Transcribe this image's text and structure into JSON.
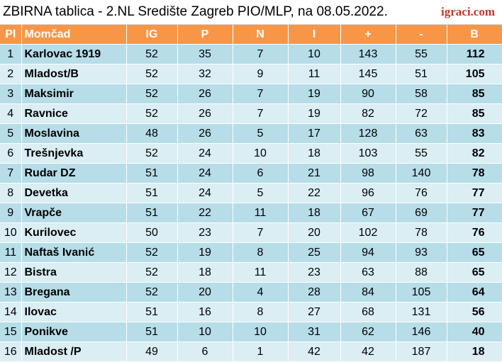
{
  "header": {
    "title": "ZBIRNA tablica - 2.NL Središte Zagreb PIO/MLP, na 08.05.2022.",
    "brand": "igraci.com"
  },
  "columns": [
    "Pl",
    "Momčad",
    "IG",
    "P",
    "N",
    "I",
    "+",
    "-",
    "B"
  ],
  "rows": [
    [
      "1",
      "Karlovac 1919",
      "52",
      "35",
      "7",
      "10",
      "143",
      "55",
      "112"
    ],
    [
      "2",
      "Mladost/B",
      "52",
      "32",
      "9",
      "11",
      "145",
      "51",
      "105"
    ],
    [
      "3",
      "Maksimir",
      "52",
      "26",
      "7",
      "19",
      "90",
      "58",
      "85"
    ],
    [
      "4",
      "Ravnice",
      "52",
      "26",
      "7",
      "19",
      "82",
      "72",
      "85"
    ],
    [
      "5",
      "Moslavina",
      "48",
      "26",
      "5",
      "17",
      "128",
      "63",
      "83"
    ],
    [
      "6",
      "Trešnjevka",
      "52",
      "24",
      "10",
      "18",
      "103",
      "55",
      "82"
    ],
    [
      "7",
      "Rudar DZ",
      "51",
      "24",
      "6",
      "21",
      "98",
      "140",
      "78"
    ],
    [
      "8",
      "Devetka",
      "51",
      "24",
      "5",
      "22",
      "96",
      "76",
      "77"
    ],
    [
      "9",
      "Vrapče",
      "51",
      "22",
      "11",
      "18",
      "67",
      "69",
      "77"
    ],
    [
      "10",
      "Kurilovec",
      "50",
      "23",
      "7",
      "20",
      "102",
      "78",
      "76"
    ],
    [
      "11",
      "Naftaš Ivanić",
      "52",
      "19",
      "8",
      "25",
      "94",
      "93",
      "65"
    ],
    [
      "12",
      "Bistra",
      "52",
      "18",
      "11",
      "23",
      "63",
      "88",
      "65"
    ],
    [
      "13",
      "Bregana",
      "52",
      "20",
      "4",
      "28",
      "84",
      "105",
      "64"
    ],
    [
      "14",
      "Ilovac",
      "51",
      "16",
      "8",
      "27",
      "68",
      "131",
      "56"
    ],
    [
      "15",
      "Ponikve",
      "51",
      "10",
      "10",
      "31",
      "62",
      "146",
      "40"
    ],
    [
      "16",
      "Mladost /P",
      "49",
      "6",
      "1",
      "42",
      "42",
      "187",
      "18"
    ]
  ]
}
